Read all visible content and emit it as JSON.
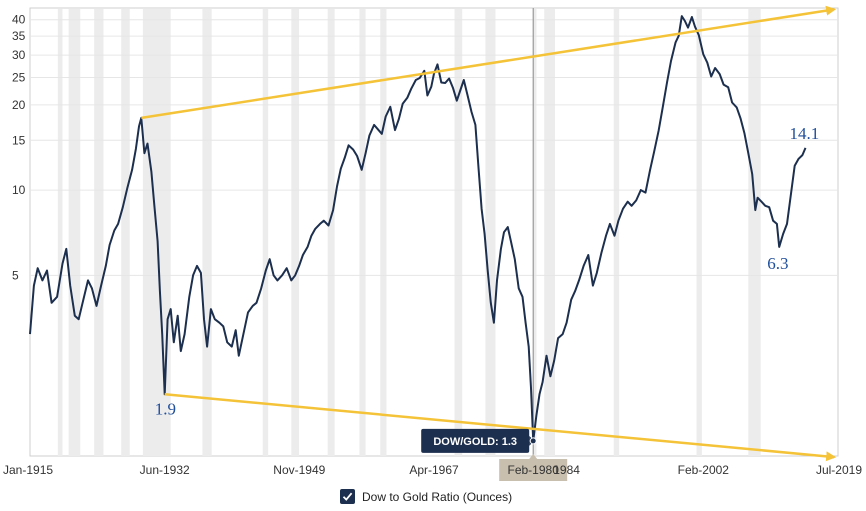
{
  "chart_data": {
    "type": "line",
    "title": "",
    "xlabel": "",
    "ylabel": "",
    "y_scale": "log",
    "ylim": [
      1.15,
      44
    ],
    "xlim": [
      1915.0,
      2019.5
    ],
    "yticks": [
      5,
      10,
      15,
      20,
      25,
      30,
      35,
      40
    ],
    "xticks": [
      {
        "x": 1915.0,
        "label": "Jan-1915"
      },
      {
        "x": 1932.42,
        "label": "Jun-1932"
      },
      {
        "x": 1949.83,
        "label": "Nov-1949"
      },
      {
        "x": 1967.25,
        "label": "Apr-1967"
      },
      {
        "x": 1980.08,
        "label": "Feb-1980"
      },
      {
        "x": 1984.4,
        "label": "1984"
      },
      {
        "x": 2002.08,
        "label": "Feb-2002"
      },
      {
        "x": 2019.5,
        "label": "Jul-2019"
      }
    ],
    "grid": "horizontal",
    "recessions": [
      [
        1918.6,
        1919.2
      ],
      [
        1920.0,
        1921.5
      ],
      [
        1923.3,
        1924.5
      ],
      [
        1926.8,
        1927.9
      ],
      [
        1929.6,
        1933.2
      ],
      [
        1937.3,
        1938.5
      ],
      [
        1945.1,
        1945.8
      ],
      [
        1948.8,
        1949.8
      ],
      [
        1953.5,
        1954.4
      ],
      [
        1957.6,
        1958.4
      ],
      [
        1960.3,
        1961.1
      ],
      [
        1969.9,
        1970.9
      ],
      [
        1973.9,
        1975.2
      ],
      [
        1980.0,
        1980.5
      ],
      [
        1981.5,
        1982.9
      ],
      [
        1990.5,
        1991.2
      ],
      [
        2001.2,
        2001.9
      ],
      [
        2007.9,
        2009.5
      ]
    ],
    "series": [
      {
        "name": "Dow to Gold Ratio (Ounces)",
        "color": "#1d2f4e",
        "points": [
          [
            1915.0,
            3.1
          ],
          [
            1915.5,
            4.6
          ],
          [
            1916.0,
            5.3
          ],
          [
            1916.6,
            4.8
          ],
          [
            1917.2,
            5.2
          ],
          [
            1917.8,
            4.0
          ],
          [
            1918.5,
            4.2
          ],
          [
            1919.2,
            5.5
          ],
          [
            1919.7,
            6.2
          ],
          [
            1920.2,
            4.6
          ],
          [
            1920.8,
            3.6
          ],
          [
            1921.3,
            3.5
          ],
          [
            1921.8,
            4.0
          ],
          [
            1922.5,
            4.8
          ],
          [
            1923.0,
            4.5
          ],
          [
            1923.6,
            3.9
          ],
          [
            1924.2,
            4.6
          ],
          [
            1924.8,
            5.4
          ],
          [
            1925.3,
            6.4
          ],
          [
            1925.9,
            7.2
          ],
          [
            1926.4,
            7.6
          ],
          [
            1927.0,
            8.7
          ],
          [
            1927.6,
            10.2
          ],
          [
            1928.2,
            11.8
          ],
          [
            1928.7,
            14.0
          ],
          [
            1929.1,
            16.8
          ],
          [
            1929.4,
            18.0
          ],
          [
            1929.8,
            13.5
          ],
          [
            1930.2,
            14.6
          ],
          [
            1930.7,
            11.6
          ],
          [
            1931.1,
            8.7
          ],
          [
            1931.5,
            6.6
          ],
          [
            1931.8,
            4.4
          ],
          [
            1932.1,
            3.1
          ],
          [
            1932.42,
            1.9
          ],
          [
            1932.8,
            3.5
          ],
          [
            1933.2,
            3.8
          ],
          [
            1933.6,
            2.9
          ],
          [
            1934.1,
            3.6
          ],
          [
            1934.5,
            2.7
          ],
          [
            1935.0,
            3.1
          ],
          [
            1935.6,
            4.2
          ],
          [
            1936.1,
            5.0
          ],
          [
            1936.6,
            5.4
          ],
          [
            1937.1,
            5.1
          ],
          [
            1937.5,
            3.5
          ],
          [
            1937.9,
            2.8
          ],
          [
            1938.4,
            3.8
          ],
          [
            1938.9,
            3.5
          ],
          [
            1939.5,
            3.4
          ],
          [
            1940.0,
            3.3
          ],
          [
            1940.5,
            2.9
          ],
          [
            1941.1,
            2.8
          ],
          [
            1941.6,
            3.2
          ],
          [
            1942.0,
            2.6
          ],
          [
            1942.6,
            3.1
          ],
          [
            1943.2,
            3.7
          ],
          [
            1943.8,
            3.9
          ],
          [
            1944.3,
            4.0
          ],
          [
            1944.9,
            4.5
          ],
          [
            1945.5,
            5.2
          ],
          [
            1946.0,
            5.7
          ],
          [
            1946.5,
            5.0
          ],
          [
            1947.0,
            4.8
          ],
          [
            1947.6,
            5.0
          ],
          [
            1948.2,
            5.3
          ],
          [
            1948.8,
            4.8
          ],
          [
            1949.3,
            5.0
          ],
          [
            1949.8,
            5.4
          ],
          [
            1950.3,
            5.9
          ],
          [
            1950.9,
            6.3
          ],
          [
            1951.4,
            6.9
          ],
          [
            1951.9,
            7.3
          ],
          [
            1952.5,
            7.6
          ],
          [
            1953.0,
            7.8
          ],
          [
            1953.6,
            7.5
          ],
          [
            1954.2,
            8.5
          ],
          [
            1954.7,
            10.3
          ],
          [
            1955.2,
            11.9
          ],
          [
            1955.7,
            13.0
          ],
          [
            1956.2,
            14.4
          ],
          [
            1956.8,
            13.9
          ],
          [
            1957.3,
            13.2
          ],
          [
            1957.9,
            11.8
          ],
          [
            1958.4,
            13.5
          ],
          [
            1958.9,
            15.6
          ],
          [
            1959.5,
            17.0
          ],
          [
            1960.0,
            16.4
          ],
          [
            1960.5,
            15.8
          ],
          [
            1961.0,
            18.2
          ],
          [
            1961.6,
            19.7
          ],
          [
            1962.2,
            16.3
          ],
          [
            1962.7,
            17.8
          ],
          [
            1963.2,
            20.2
          ],
          [
            1963.8,
            21.2
          ],
          [
            1964.3,
            22.8
          ],
          [
            1964.9,
            24.5
          ],
          [
            1965.4,
            24.9
          ],
          [
            1966.0,
            26.4
          ],
          [
            1966.4,
            21.6
          ],
          [
            1966.9,
            23.2
          ],
          [
            1967.25,
            25.8
          ],
          [
            1967.7,
            27.8
          ],
          [
            1968.2,
            24.0
          ],
          [
            1968.7,
            23.9
          ],
          [
            1969.2,
            24.8
          ],
          [
            1969.7,
            23.0
          ],
          [
            1970.2,
            20.7
          ],
          [
            1970.6,
            22.3
          ],
          [
            1971.1,
            24.5
          ],
          [
            1971.6,
            21.6
          ],
          [
            1972.1,
            18.9
          ],
          [
            1972.6,
            17.0
          ],
          [
            1973.0,
            12.0
          ],
          [
            1973.4,
            8.6
          ],
          [
            1973.8,
            7.0
          ],
          [
            1974.2,
            5.2
          ],
          [
            1974.6,
            4.0
          ],
          [
            1975.0,
            3.4
          ],
          [
            1975.4,
            4.8
          ],
          [
            1975.9,
            6.2
          ],
          [
            1976.3,
            7.1
          ],
          [
            1976.8,
            7.4
          ],
          [
            1977.2,
            6.6
          ],
          [
            1977.7,
            5.7
          ],
          [
            1978.2,
            4.5
          ],
          [
            1978.7,
            4.2
          ],
          [
            1979.1,
            3.4
          ],
          [
            1979.5,
            2.8
          ],
          [
            1979.8,
            2.0
          ],
          [
            1980.08,
            1.3
          ],
          [
            1980.5,
            1.6
          ],
          [
            1980.9,
            1.9
          ],
          [
            1981.3,
            2.1
          ],
          [
            1981.8,
            2.6
          ],
          [
            1982.3,
            2.2
          ],
          [
            1982.8,
            2.5
          ],
          [
            1983.3,
            3.0
          ],
          [
            1983.9,
            3.1
          ],
          [
            1984.4,
            3.4
          ],
          [
            1985.0,
            4.1
          ],
          [
            1985.5,
            4.4
          ],
          [
            1986.0,
            4.8
          ],
          [
            1986.6,
            5.4
          ],
          [
            1987.2,
            5.9
          ],
          [
            1987.8,
            4.6
          ],
          [
            1988.3,
            5.1
          ],
          [
            1988.9,
            6.0
          ],
          [
            1989.5,
            6.9
          ],
          [
            1990.0,
            7.6
          ],
          [
            1990.6,
            6.9
          ],
          [
            1991.1,
            7.8
          ],
          [
            1991.7,
            8.6
          ],
          [
            1992.3,
            9.1
          ],
          [
            1992.8,
            8.8
          ],
          [
            1993.4,
            9.2
          ],
          [
            1994.0,
            10.0
          ],
          [
            1994.6,
            9.8
          ],
          [
            1995.2,
            11.8
          ],
          [
            1995.7,
            13.6
          ],
          [
            1996.3,
            16.2
          ],
          [
            1996.8,
            19.4
          ],
          [
            1997.4,
            24.1
          ],
          [
            1997.9,
            28.6
          ],
          [
            1998.5,
            33.3
          ],
          [
            1998.9,
            35.1
          ],
          [
            1999.3,
            41.2
          ],
          [
            1999.7,
            39.6
          ],
          [
            2000.1,
            37.5
          ],
          [
            2000.6,
            40.9
          ],
          [
            2001.0,
            37.8
          ],
          [
            2001.5,
            35.3
          ],
          [
            2002.08,
            30.2
          ],
          [
            2002.6,
            28.2
          ],
          [
            2003.1,
            25.2
          ],
          [
            2003.6,
            27.0
          ],
          [
            2004.2,
            25.7
          ],
          [
            2004.7,
            23.6
          ],
          [
            2005.3,
            23.1
          ],
          [
            2005.8,
            20.4
          ],
          [
            2006.4,
            19.6
          ],
          [
            2006.9,
            17.9
          ],
          [
            2007.4,
            15.9
          ],
          [
            2007.9,
            13.5
          ],
          [
            2008.4,
            11.4
          ],
          [
            2008.8,
            8.5
          ],
          [
            2009.1,
            9.4
          ],
          [
            2009.6,
            9.1
          ],
          [
            2010.1,
            8.8
          ],
          [
            2010.6,
            8.7
          ],
          [
            2011.1,
            7.8
          ],
          [
            2011.6,
            7.6
          ],
          [
            2011.9,
            6.3
          ],
          [
            2012.4,
            7.0
          ],
          [
            2012.9,
            7.6
          ],
          [
            2013.4,
            9.6
          ],
          [
            2013.9,
            12.2
          ],
          [
            2014.4,
            12.9
          ],
          [
            2014.9,
            13.3
          ],
          [
            2015.3,
            14.1
          ]
        ]
      }
    ],
    "trendlines": [
      {
        "color": "#f5c338",
        "from": [
          1929.4,
          18.0
        ],
        "to": [
          2019.0,
          43.5
        ]
      },
      {
        "color": "#f5c338",
        "from": [
          1932.42,
          1.9
        ],
        "to": [
          2019.0,
          1.14
        ]
      }
    ],
    "annotations": [
      {
        "text": "1.9",
        "x": 1932.42,
        "y": 1.9
      },
      {
        "text": "6.3",
        "x": 2011.9,
        "y": 6.3
      },
      {
        "text": "14.1",
        "x": 2015.3,
        "y": 14.1
      }
    ],
    "crosshair": {
      "x": 1980.08
    },
    "tooltip": {
      "text": "DOW/GOLD: 1.3",
      "x": 1980.08,
      "y": 1.3
    },
    "active_x_label": "Feb-1980",
    "legend": {
      "label": "Dow to Gold Ratio (Ounces)",
      "checked": true,
      "placement": "bottom"
    }
  }
}
